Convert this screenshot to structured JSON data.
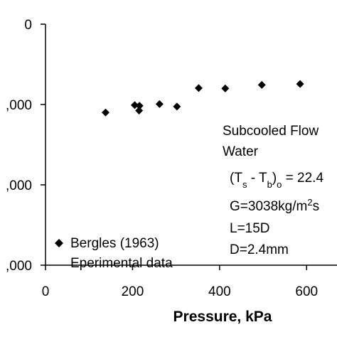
{
  "chart_data": {
    "type": "scatter",
    "xlabel": "Pressure, kPa",
    "ylabel": "",
    "xlim": [
      0,
      700
    ],
    "ylim": [
      0,
      6000
    ],
    "x_ticks": [
      0,
      200,
      400,
      600
    ],
    "y_ticks": [
      0,
      2000,
      4000,
      6000
    ],
    "x_tick_labels": [
      "0",
      "200",
      "400",
      "600"
    ],
    "y_tick_labels": [
      ",000",
      ",000",
      ",000",
      "0"
    ],
    "grid": false,
    "series": [
      {
        "name": "Bergles (1963)",
        "marker": "diamond",
        "color": "#000000",
        "points": [
          {
            "x": 138,
            "y": 3800
          },
          {
            "x": 205,
            "y": 3985
          },
          {
            "x": 215,
            "y": 3850
          },
          {
            "x": 216,
            "y": 3970
          },
          {
            "x": 262,
            "y": 4010
          },
          {
            "x": 302,
            "y": 3950
          },
          {
            "x": 352,
            "y": 4410
          },
          {
            "x": 413,
            "y": 4400
          },
          {
            "x": 497,
            "y": 4490
          },
          {
            "x": 585,
            "y": 4510
          }
        ]
      }
    ],
    "legend": {
      "placement": "bottom-left",
      "line1": "Bergles (1963)",
      "line2": "Eperimental data"
    },
    "annotation": {
      "line1": "Subcooled Flow",
      "line2": "Water",
      "line3_open": "(T",
      "line3_sub1": "s",
      "line3_mid": " - T",
      "line3_sub2": "b",
      "line3_close": ")",
      "line3_sub3": "o",
      "line3_tail": " = 22.4",
      "line4_main": "G=3038kg/m",
      "line4_sup": "2",
      "line4_tail": "s",
      "line5": "L=15D",
      "line6": "D=2.4mm"
    }
  }
}
